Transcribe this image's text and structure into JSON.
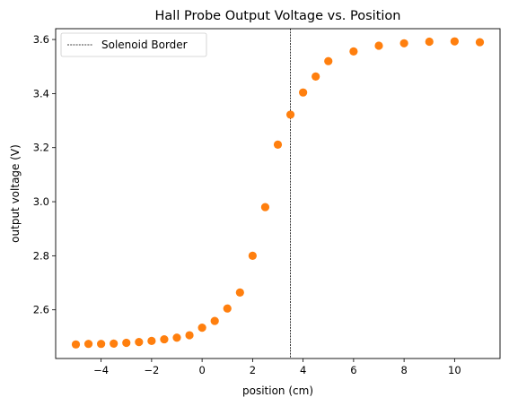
{
  "chart_data": {
    "type": "scatter",
    "title": "Hall Probe Output Voltage vs. Position",
    "xlabel": "position (cm)",
    "ylabel": "output voltage (V)",
    "xlim": [
      -5.8,
      11.8
    ],
    "ylim": [
      2.42,
      3.64
    ],
    "xticks": [
      -4,
      -2,
      0,
      2,
      4,
      6,
      8,
      10
    ],
    "xtick_labels": [
      "−4",
      "−2",
      "0",
      "2",
      "4",
      "6",
      "8",
      "10"
    ],
    "yticks": [
      2.6,
      2.8,
      3.0,
      3.2,
      3.4,
      3.6
    ],
    "ytick_labels": [
      "2.6",
      "2.8",
      "3.0",
      "3.2",
      "3.4",
      "3.6"
    ],
    "grid": false,
    "legend_position": "top-left",
    "series": [
      {
        "kind": "scatter",
        "color": "#ff7f0e",
        "points": [
          {
            "x": -5.0,
            "y": 2.472
          },
          {
            "x": -4.5,
            "y": 2.474
          },
          {
            "x": -4.0,
            "y": 2.474
          },
          {
            "x": -3.5,
            "y": 2.475
          },
          {
            "x": -3.0,
            "y": 2.478
          },
          {
            "x": -2.5,
            "y": 2.481
          },
          {
            "x": -2.0,
            "y": 2.485
          },
          {
            "x": -1.5,
            "y": 2.491
          },
          {
            "x": -1.0,
            "y": 2.497
          },
          {
            "x": -0.5,
            "y": 2.506
          },
          {
            "x": 0.0,
            "y": 2.534
          },
          {
            "x": 0.5,
            "y": 2.559
          },
          {
            "x": 1.0,
            "y": 2.605
          },
          {
            "x": 1.5,
            "y": 2.664
          },
          {
            "x": 2.0,
            "y": 2.8
          },
          {
            "x": 2.5,
            "y": 2.98
          },
          {
            "x": 3.0,
            "y": 3.211
          },
          {
            "x": 3.5,
            "y": 3.322
          },
          {
            "x": 4.0,
            "y": 3.404
          },
          {
            "x": 4.5,
            "y": 3.463
          },
          {
            "x": 5.0,
            "y": 3.52
          },
          {
            "x": 6.0,
            "y": 3.556
          },
          {
            "x": 7.0,
            "y": 3.577
          },
          {
            "x": 8.0,
            "y": 3.586
          },
          {
            "x": 9.0,
            "y": 3.592
          },
          {
            "x": 10.0,
            "y": 3.593
          },
          {
            "x": 11.0,
            "y": 3.59
          }
        ]
      }
    ],
    "vlines": [
      {
        "name": "Solenoid Border",
        "x": 3.5,
        "color": "#000000",
        "style": "dashed"
      }
    ]
  }
}
